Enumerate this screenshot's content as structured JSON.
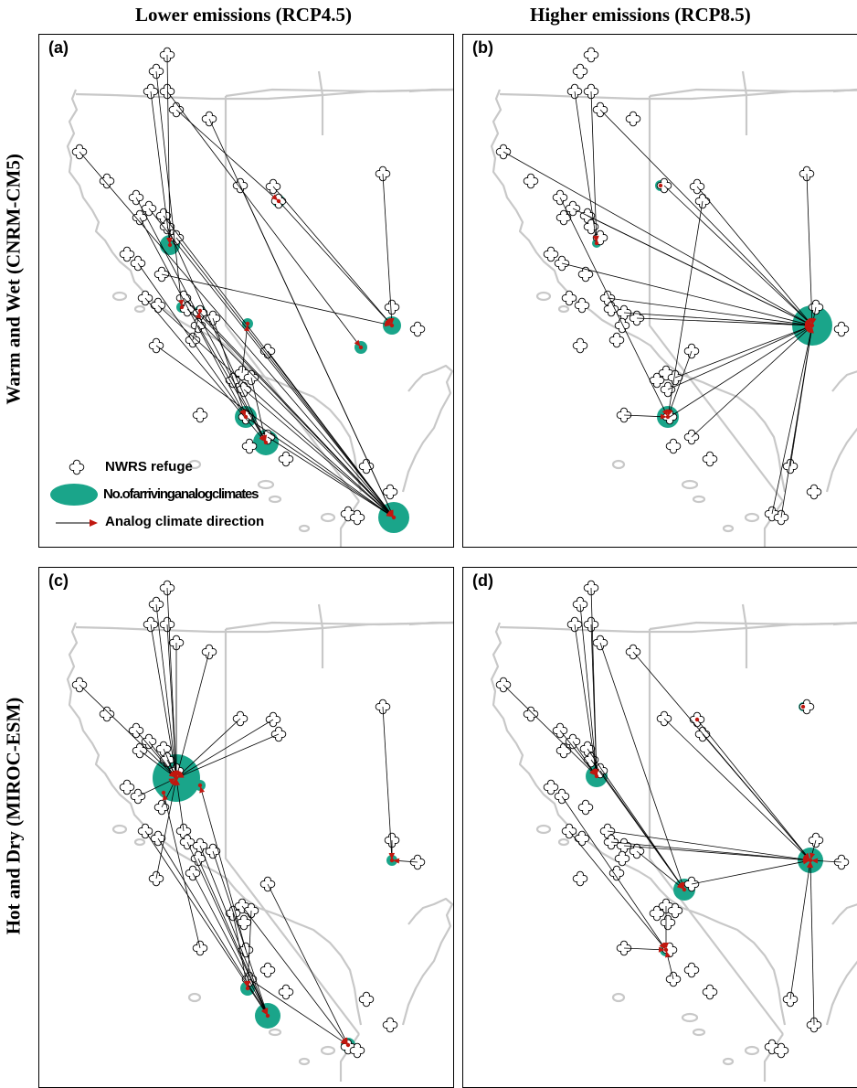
{
  "columns": {
    "left": "Lower emissions (RCP4.5)",
    "right": "Higher emissions (RCP8.5)"
  },
  "rows": {
    "top": "Warm and Wet (CNRM-CM5)",
    "bottom": "Hot and Dry (MIROC-ESM)"
  },
  "panels": [
    {
      "label": "(a)",
      "model": "CNRM-CM5",
      "scenario": "RCP4.5"
    },
    {
      "label": "(b)",
      "model": "CNRM-CM5",
      "scenario": "RCP8.5"
    },
    {
      "label": "(c)",
      "model": "MIROC-ESM",
      "scenario": "RCP4.5"
    },
    {
      "label": "(d)",
      "model": "MIROC-ESM",
      "scenario": "RCP8.5"
    }
  ],
  "legend": {
    "refuge": "NWRS refuge",
    "arriving": "No.ofarrivinganalogclimates",
    "direction": "Analog climate direction"
  },
  "colors": {
    "analog_circle": "#1aa58a",
    "arrow_head": "#c0170f",
    "arrow_line": "#000000",
    "boundary": "#c8c8c8",
    "refuge_outline": "#000000"
  },
  "icons": {
    "refuge": "clover-outline-icon",
    "arriving": "green-ellipse-icon",
    "direction": "red-arrow-icon"
  }
}
